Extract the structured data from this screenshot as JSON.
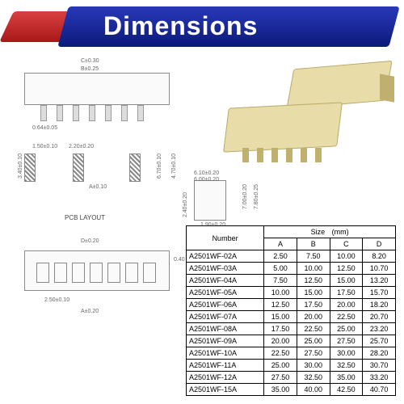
{
  "header": {
    "title": "Dimensions",
    "red_gradient": [
      "#d94040",
      "#a81818"
    ],
    "blue_gradient": [
      "#2838b8",
      "#0c1a7a"
    ],
    "text_color": "#ffffff",
    "title_fontsize": 32
  },
  "diagrams": {
    "top_view": {
      "labels": {
        "c": "C±0.30",
        "b": "B±0.25",
        "pin_thick": "0.64±0.05"
      }
    },
    "pcb_layout": {
      "title": "PCB LAYOUT",
      "labels": {
        "l1": "1.50±0.10",
        "l2": "2.20±0.20",
        "h1": "3.40±0.10",
        "a": "A±0.10",
        "h2": "6.70±0.10",
        "h3": "4.70±0.10"
      }
    },
    "side_bracket": {
      "labels": {
        "w1": "6.10±0.20",
        "w2": "6.00±0.20",
        "h1": "7.00±0.20",
        "h2": "7.80±0.25",
        "h3": "2.40±0.20",
        "b1": "1.90±0.20"
      }
    },
    "bottom_view": {
      "labels": {
        "d": "D±0.20",
        "e": "0.40",
        "p1": "2.50±0.10",
        "a": "A±0.20"
      }
    }
  },
  "connector_image": {
    "body_color": "#e8dca8",
    "edge_color": "#b8a868",
    "pin_color": "#c0b070"
  },
  "dimensions_table": {
    "header_number": "Number",
    "header_size": "Size",
    "size_unit": "(mm)",
    "columns": [
      "A",
      "B",
      "C",
      "D"
    ],
    "rows": [
      {
        "number": "A2501WF-02A",
        "a": "2.50",
        "b": "7.50",
        "c": "10.00",
        "d": "8.20"
      },
      {
        "number": "A2501WF-03A",
        "a": "5.00",
        "b": "10.00",
        "c": "12.50",
        "d": "10.70"
      },
      {
        "number": "A2501WF-04A",
        "a": "7.50",
        "b": "12.50",
        "c": "15.00",
        "d": "13.20"
      },
      {
        "number": "A2501WF-05A",
        "a": "10.00",
        "b": "15.00",
        "c": "17.50",
        "d": "15.70"
      },
      {
        "number": "A2501WF-06A",
        "a": "12.50",
        "b": "17.50",
        "c": "20.00",
        "d": "18.20"
      },
      {
        "number": "A2501WF-07A",
        "a": "15.00",
        "b": "20.00",
        "c": "22.50",
        "d": "20.70"
      },
      {
        "number": "A2501WF-08A",
        "a": "17.50",
        "b": "22.50",
        "c": "25.00",
        "d": "23.20"
      },
      {
        "number": "A2501WF-09A",
        "a": "20.00",
        "b": "25.00",
        "c": "27.50",
        "d": "25.70"
      },
      {
        "number": "A2501WF-10A",
        "a": "22.50",
        "b": "27.50",
        "c": "30.00",
        "d": "28.20"
      },
      {
        "number": "A2501WF-11A",
        "a": "25.00",
        "b": "30.00",
        "c": "32.50",
        "d": "30.70"
      },
      {
        "number": "A2501WF-12A",
        "a": "27.50",
        "b": "32.50",
        "c": "35.00",
        "d": "33.20"
      },
      {
        "number": "A2501WF-15A",
        "a": "35.00",
        "b": "40.00",
        "c": "42.50",
        "d": "40.70"
      }
    ],
    "border_color": "#000000",
    "cell_fontsize": 9
  },
  "diagram_style": {
    "line_color": "#888888",
    "label_color": "#666666",
    "label_fontsize": 7,
    "background": "#fafafa"
  }
}
